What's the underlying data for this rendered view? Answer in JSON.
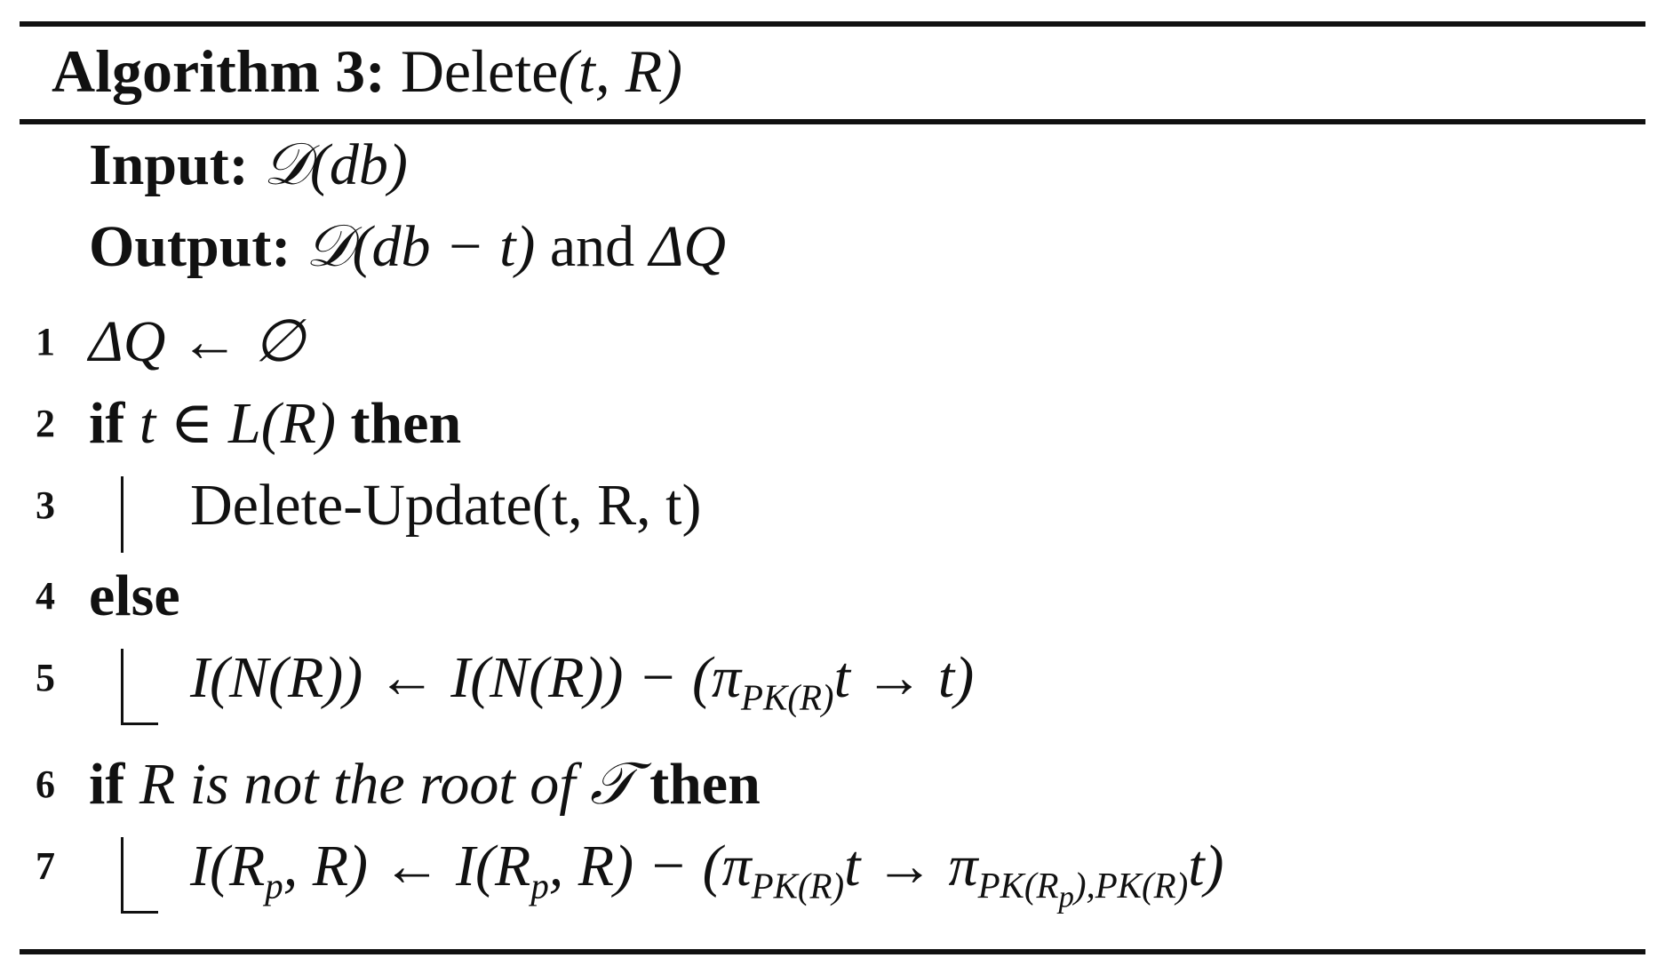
{
  "title": {
    "label": "Algorithm 3:",
    "name": "Delete",
    "args": "(t, R)"
  },
  "input": {
    "label": "Input:",
    "value": "𝒟(db)"
  },
  "output": {
    "label": "Output:",
    "value": "𝒟(db − t)",
    "conj": "and",
    "delta": "ΔQ"
  },
  "lines": [
    {
      "no": "1",
      "text": "ΔQ ← ∅"
    },
    {
      "no": "2",
      "kw1": "if",
      "cond": "t ∈ L(R)",
      "kw2": "then"
    },
    {
      "no": "3",
      "text": "Delete-Update(t, R, t)"
    },
    {
      "no": "4",
      "kw1": "else"
    },
    {
      "no": "5",
      "lhs": "I(N(R)) ← I(N(R)) − (π",
      "sub": "PK(R)",
      "rhs": "t → t)"
    },
    {
      "no": "6",
      "kw1": "if",
      "cond": "R is not the root of 𝒯",
      "kw2": "then"
    },
    {
      "no": "7",
      "lhs_a": "I(R",
      "lhs_sub": "p",
      "lhs_b": ", R) ← I(R",
      "mid_sub": "p",
      "mid_b": ", R) − (π",
      "sub1": "PK(R)",
      "arrow": "t → π",
      "sub2a": "PK(R",
      "sub2p": "p",
      "sub2b": "),PK(R)",
      "tail": "t)"
    }
  ]
}
